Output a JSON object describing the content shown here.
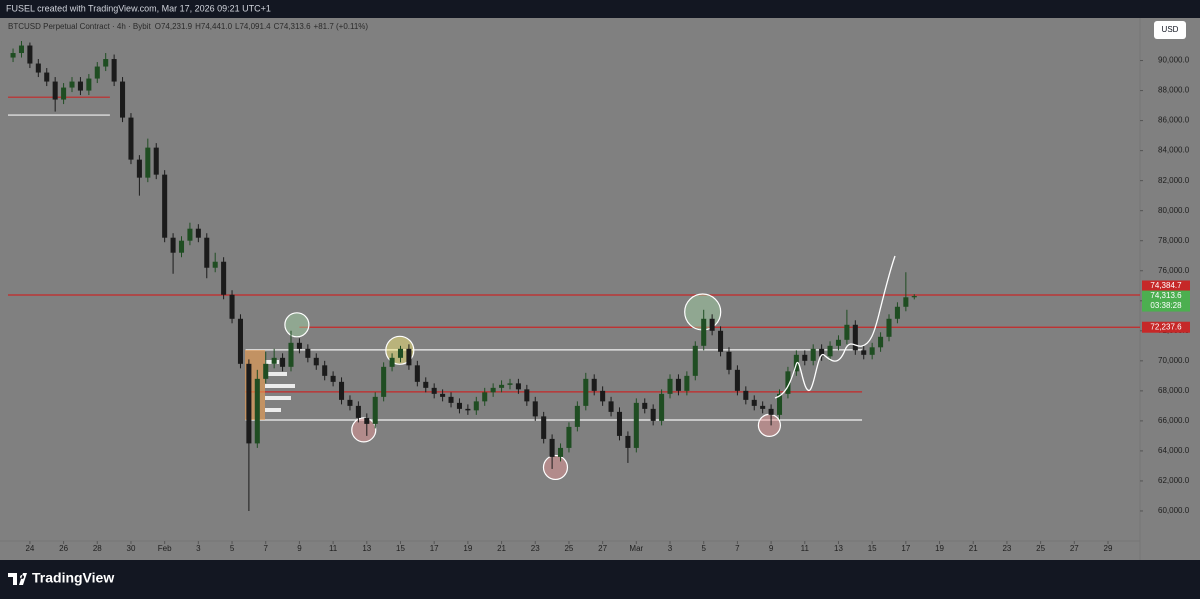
{
  "header": {
    "title": "FUSEL created with TradingView.com, Mar 17, 2026 09:21 UTC+1",
    "symbol": "BTCUSD Perpetual Contract · 4h · Bybit",
    "o": "O",
    "open": "74,231.9",
    "h": "H",
    "high": "74,441.0",
    "l": "L",
    "low": "74,091.4",
    "c": "C",
    "close": "74,313.6",
    "change": "+81.7 (+0.11%)",
    "currency": "USD",
    "brand": "TradingView"
  },
  "chart_data": {
    "type": "candlestick",
    "x": [
      -1,
      -0.5,
      0,
      0.5,
      1,
      1.5,
      2,
      2.5,
      3,
      3.5,
      4,
      4.5,
      5,
      5.5,
      6,
      6.5,
      7,
      7.5,
      8,
      8.5,
      9,
      9.5,
      10,
      10.5,
      11,
      11.5,
      12,
      12.5,
      13,
      13.5,
      14,
      14.5,
      15,
      15.5,
      16,
      16.5,
      17,
      17.5,
      18,
      18.5,
      19,
      19.5,
      20,
      20.5,
      21,
      21.5,
      22,
      22.5,
      23,
      23.5,
      24,
      24.5,
      25,
      25.5,
      26,
      26.5,
      27,
      27.5,
      28,
      28.5,
      29,
      29.5,
      30,
      30.5,
      31,
      31.5,
      32,
      32.5,
      33,
      33.5,
      34,
      34.5,
      35,
      35.5,
      36,
      36.5,
      37,
      37.5,
      38,
      38.5,
      39,
      39.5,
      40,
      40.5,
      41,
      41.5,
      42,
      42.5,
      43,
      43.5,
      44,
      44.5,
      45,
      45.5,
      46,
      46.5,
      47,
      47.5,
      48,
      48.5,
      49,
      49.5,
      50,
      50.5,
      51,
      51.5,
      52,
      52.5
    ],
    "open": [
      90200,
      90500,
      91000,
      89800,
      89200,
      88600,
      87400,
      88200,
      88600,
      88000,
      88800,
      89600,
      90100,
      88600,
      86200,
      83400,
      82200,
      84200,
      82400,
      78200,
      77200,
      78000,
      78800,
      78200,
      76200,
      76600,
      74400,
      72800,
      69800,
      64500,
      68800,
      69800,
      70200,
      69600,
      71200,
      70800,
      70200,
      69700,
      69000,
      68600,
      67400,
      67000,
      66200,
      65800,
      67600,
      69600,
      70200,
      70800,
      69700,
      68600,
      68200,
      67800,
      67600,
      67200,
      66800,
      66700,
      67300,
      67900,
      68200,
      68400,
      68500,
      68100,
      67300,
      66300,
      64800,
      63600,
      64200,
      65600,
      67000,
      68800,
      68000,
      67300,
      66600,
      65000,
      64200,
      67200,
      66800,
      66000,
      67800,
      68800,
      68000,
      69000,
      71000,
      72800,
      72000,
      70600,
      69400,
      68000,
      67400,
      67000,
      66800,
      66400,
      67800,
      69300,
      70400,
      70000,
      70800,
      70300,
      71000,
      71400,
      72400,
      70700,
      70400,
      70900,
      71600,
      72800,
      73600,
      74231.9
    ],
    "high": [
      90800,
      91300,
      91200,
      90100,
      89500,
      88900,
      88500,
      88900,
      88900,
      89100,
      89900,
      90500,
      90400,
      88900,
      86500,
      83700,
      84800,
      84500,
      82700,
      78500,
      78300,
      79200,
      79100,
      78500,
      77200,
      76900,
      74700,
      73100,
      70100,
      69400,
      70600,
      70800,
      70500,
      72000,
      71500,
      71100,
      70500,
      70000,
      69300,
      68900,
      67700,
      67300,
      66500,
      67900,
      69900,
      70500,
      71000,
      71100,
      70000,
      68900,
      68500,
      68100,
      67900,
      67500,
      67100,
      67600,
      68200,
      68500,
      68700,
      68800,
      68800,
      68400,
      67600,
      66600,
      65100,
      64500,
      65900,
      67300,
      69200,
      69100,
      68300,
      67600,
      66900,
      65300,
      67500,
      67500,
      67100,
      68100,
      69100,
      69100,
      69300,
      71300,
      73400,
      73100,
      72300,
      70900,
      69700,
      68300,
      67700,
      67300,
      67100,
      68100,
      69600,
      70700,
      70700,
      71100,
      71100,
      71300,
      71700,
      73400,
      72700,
      71000,
      71200,
      71900,
      73100,
      73900,
      75900,
      74441
    ],
    "low": [
      89900,
      90200,
      89500,
      88900,
      88300,
      86600,
      87100,
      87900,
      87700,
      87700,
      88500,
      89300,
      88300,
      85900,
      83100,
      81000,
      81900,
      82100,
      77900,
      75800,
      76900,
      77700,
      77900,
      75500,
      75900,
      74100,
      72500,
      69500,
      60000,
      64200,
      68500,
      69500,
      69300,
      69300,
      70500,
      69900,
      69400,
      68700,
      68300,
      67100,
      66700,
      65900,
      65000,
      65500,
      67300,
      69300,
      69900,
      69400,
      68300,
      67900,
      67500,
      67300,
      66900,
      66500,
      66400,
      66400,
      67000,
      67600,
      67900,
      68100,
      67800,
      67000,
      66000,
      64500,
      62800,
      63300,
      63900,
      65300,
      66700,
      67700,
      67000,
      66300,
      64700,
      63200,
      63900,
      66500,
      65700,
      65700,
      67500,
      67700,
      67700,
      68700,
      70700,
      71700,
      70300,
      69100,
      67700,
      67100,
      66700,
      66500,
      65700,
      66100,
      67500,
      69000,
      69700,
      69700,
      70000,
      70000,
      70700,
      71100,
      70400,
      70100,
      70100,
      70600,
      71300,
      72500,
      73300,
      74091.4
    ],
    "close": [
      90500,
      91000,
      89800,
      89200,
      88600,
      87400,
      88200,
      88600,
      88000,
      88800,
      89600,
      90100,
      88600,
      86200,
      83400,
      82200,
      84200,
      82400,
      78200,
      77200,
      78000,
      78800,
      78200,
      76200,
      76600,
      74400,
      72800,
      69800,
      64500,
      68800,
      69800,
      70200,
      69600,
      71200,
      70800,
      70200,
      69700,
      69000,
      68600,
      67400,
      67000,
      66200,
      65800,
      67600,
      69600,
      70200,
      70800,
      69700,
      68600,
      68200,
      67800,
      67600,
      67200,
      66800,
      66700,
      67300,
      67900,
      68200,
      68400,
      68500,
      68100,
      67300,
      66300,
      64800,
      63600,
      64200,
      65600,
      67000,
      68800,
      68000,
      67300,
      66600,
      65000,
      64200,
      67200,
      66800,
      66000,
      67800,
      68800,
      68000,
      69000,
      71000,
      72800,
      72000,
      70600,
      69400,
      68000,
      67400,
      67000,
      66800,
      66400,
      67800,
      69300,
      70400,
      70000,
      70800,
      70300,
      71000,
      71400,
      72400,
      70700,
      70400,
      70900,
      71600,
      72800,
      73600,
      74231.9,
      74313.6
    ],
    "up_color": "#1f4d22",
    "down_color": "#1b1b1b",
    "xlim": [
      -1.3,
      65.9
    ],
    "ylim": [
      58000,
      92700
    ],
    "xticks": [
      {
        "value": 0,
        "label": "24"
      },
      {
        "value": 2,
        "label": "26"
      },
      {
        "value": 4,
        "label": "28"
      },
      {
        "value": 6,
        "label": "30"
      },
      {
        "value": 8,
        "label": "Feb"
      },
      {
        "value": 10,
        "label": "3"
      },
      {
        "value": 12,
        "label": "5"
      },
      {
        "value": 14,
        "label": "7"
      },
      {
        "value": 16,
        "label": "9"
      },
      {
        "value": 18,
        "label": "11"
      },
      {
        "value": 20,
        "label": "13"
      },
      {
        "value": 22,
        "label": "15"
      },
      {
        "value": 24,
        "label": "17"
      },
      {
        "value": 26,
        "label": "19"
      },
      {
        "value": 28,
        "label": "21"
      },
      {
        "value": 30,
        "label": "23"
      },
      {
        "value": 32,
        "label": "25"
      },
      {
        "value": 34,
        "label": "27"
      },
      {
        "value": 36,
        "label": "Mar"
      },
      {
        "value": 38,
        "label": "3"
      },
      {
        "value": 40,
        "label": "5"
      },
      {
        "value": 42,
        "label": "7"
      },
      {
        "value": 44,
        "label": "9"
      },
      {
        "value": 46,
        "label": "11"
      },
      {
        "value": 48,
        "label": "13"
      },
      {
        "value": 50,
        "label": "15"
      },
      {
        "value": 52,
        "label": "17"
      },
      {
        "value": 54,
        "label": "19"
      },
      {
        "value": 56,
        "label": "21"
      },
      {
        "value": 58,
        "label": "23"
      },
      {
        "value": 60,
        "label": "25"
      },
      {
        "value": 62,
        "label": "27"
      },
      {
        "value": 64,
        "label": "29"
      }
    ],
    "yticks": [
      {
        "value": 60000,
        "label": "60,000.0"
      },
      {
        "value": 62000,
        "label": "62,000.0"
      },
      {
        "value": 64000,
        "label": "64,000.0"
      },
      {
        "value": 66000,
        "label": "66,000.0"
      },
      {
        "value": 68000,
        "label": "68,000.0"
      },
      {
        "value": 70000,
        "label": "70,000.0"
      },
      {
        "value": 72000,
        "label": "72,000.0"
      },
      {
        "value": 74000,
        "label": "74,000.0"
      },
      {
        "value": 76000,
        "label": "76,000.0"
      },
      {
        "value": 78000,
        "label": "78,000.0"
      },
      {
        "value": 80000,
        "label": "80,000.0"
      },
      {
        "value": 82000,
        "label": "82,000.0"
      },
      {
        "value": 84000,
        "label": "84,000.0"
      },
      {
        "value": 86000,
        "label": "86,000.0"
      },
      {
        "value": 88000,
        "label": "88,000.0"
      },
      {
        "value": 90000,
        "label": "90,000.0"
      }
    ],
    "grid": false,
    "levels": [
      {
        "value": 87560,
        "x": [
          -1.3,
          4.75
        ],
        "color": "#c62828"
      },
      {
        "value": 86370,
        "x": [
          -1.3,
          4.75
        ],
        "color": "#f2f2f2"
      },
      {
        "value": 70730,
        "x": [
          12.8,
          49.4
        ],
        "color": "#f2f2f2"
      },
      {
        "value": 67930,
        "x": [
          12.8,
          49.4
        ],
        "color": "#c62828"
      },
      {
        "value": 66060,
        "x": [
          12.8,
          49.4
        ],
        "color": "#f2f2f2"
      },
      {
        "value": 72237.6,
        "label": "72,237.6",
        "x": [
          16,
          65.9
        ],
        "color": "#c62828"
      },
      {
        "value": 74384.7,
        "label": "74,384.7",
        "x": [
          -1.3,
          65.9
        ],
        "color": "#c62828"
      }
    ],
    "last_price_label": "74,313.6",
    "countdown": "03:38:28",
    "last_price_color": "#4caf50",
    "circles": [
      {
        "x": 15.85,
        "price": 72400,
        "color": "#a5d6a7"
      },
      {
        "x": 21.96,
        "price": 70700,
        "color": "#fff176"
      },
      {
        "x": 19.82,
        "price": 65400,
        "color": "#ef9a9a"
      },
      {
        "x": 31.2,
        "price": 62900,
        "color": "#ef9a9a"
      },
      {
        "x": 39.94,
        "price": 73250,
        "color": "#a5d6a7"
      },
      {
        "x": 43.9,
        "price": 65700,
        "color": "#ef9a9a"
      }
    ]
  }
}
